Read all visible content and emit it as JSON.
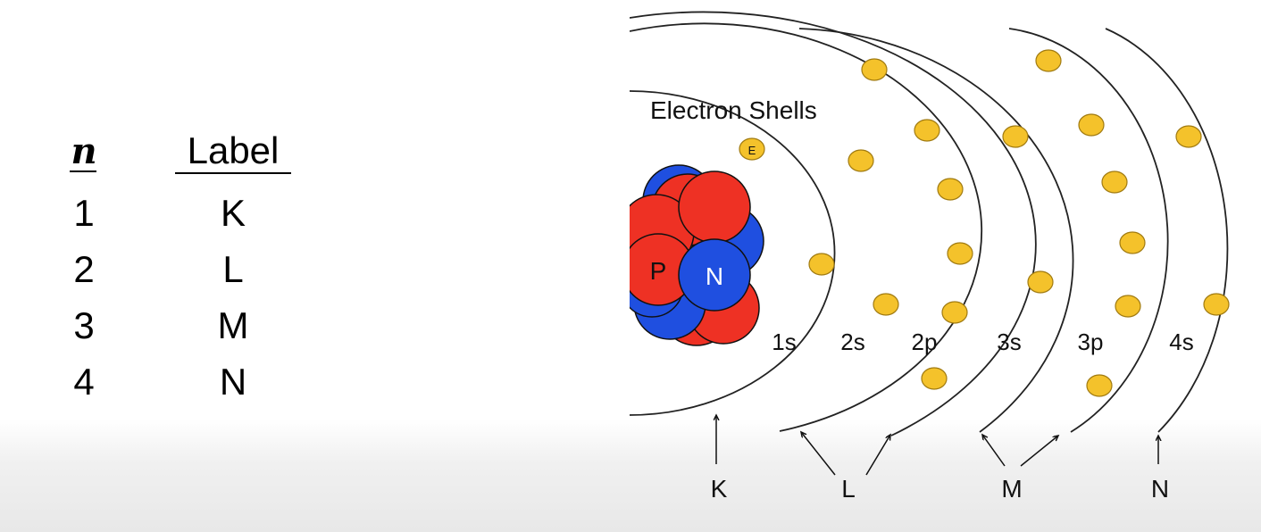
{
  "table": {
    "header_n": "n",
    "header_label": "Label",
    "rows": [
      {
        "n": "1",
        "label": "K"
      },
      {
        "n": "2",
        "label": "L"
      },
      {
        "n": "3",
        "label": "M"
      },
      {
        "n": "4",
        "label": "N"
      }
    ]
  },
  "diagram": {
    "title": "Electron Shells",
    "nucleus": {
      "proton_label": "P",
      "neutron_label": "N"
    },
    "electron_label": "E",
    "subshells": [
      "1s",
      "2s",
      "2p",
      "3s",
      "3p",
      "4s"
    ],
    "shell_labels": [
      "K",
      "L",
      "M",
      "N"
    ],
    "colors": {
      "proton": "#ee3124",
      "neutron": "#1f4fe0",
      "electron": "#f4c22b",
      "orbit": "#222222"
    }
  }
}
